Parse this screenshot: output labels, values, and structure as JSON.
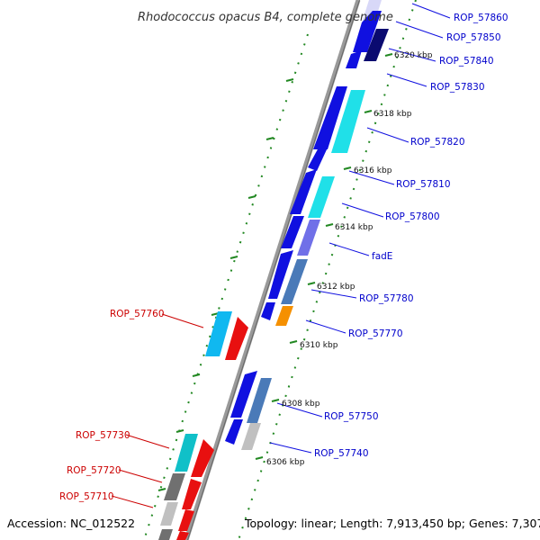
{
  "title": "Rhodococcus opacus B4, complete genome",
  "accession": "Accession: NC_012522",
  "topology": "Topology: linear; Length: 7,913,450 bp; Genes: 7,307",
  "ticks": [
    {
      "label": "6320 kbp"
    },
    {
      "label": "6318 kbp"
    },
    {
      "label": "6316 kbp"
    },
    {
      "label": "6314 kbp"
    },
    {
      "label": "6312 kbp"
    },
    {
      "label": "6310 kbp"
    },
    {
      "label": "6308 kbp"
    },
    {
      "label": "6306 kbp"
    }
  ],
  "genes_forward": [
    {
      "label": "ROP_57860"
    },
    {
      "label": "ROP_57850"
    },
    {
      "label": "ROP_57840"
    },
    {
      "label": "ROP_57830"
    },
    {
      "label": "ROP_57820"
    },
    {
      "label": "ROP_57810"
    },
    {
      "label": "ROP_57800"
    },
    {
      "label": "fadE"
    },
    {
      "label": "ROP_57780"
    },
    {
      "label": "ROP_57770"
    },
    {
      "label": "ROP_57750"
    },
    {
      "label": "ROP_57740"
    }
  ],
  "genes_reverse": [
    {
      "label": "ROP_57760"
    },
    {
      "label": "ROP_57730"
    },
    {
      "label": "ROP_57720"
    },
    {
      "label": "ROP_57710"
    }
  ],
  "colors": {
    "blue": "#1010e0",
    "cyan": "#20e0e8",
    "navy": "#0a0a70",
    "lavender": "#7070e8",
    "steel": "#4a7ab8",
    "orange": "#f59000",
    "sky": "#10b8f0",
    "red": "#e81010",
    "teal": "#10c0c8",
    "gray": "#707070",
    "lightgray": "#c0c0c0",
    "track": "#888888",
    "dots": "#228822"
  }
}
